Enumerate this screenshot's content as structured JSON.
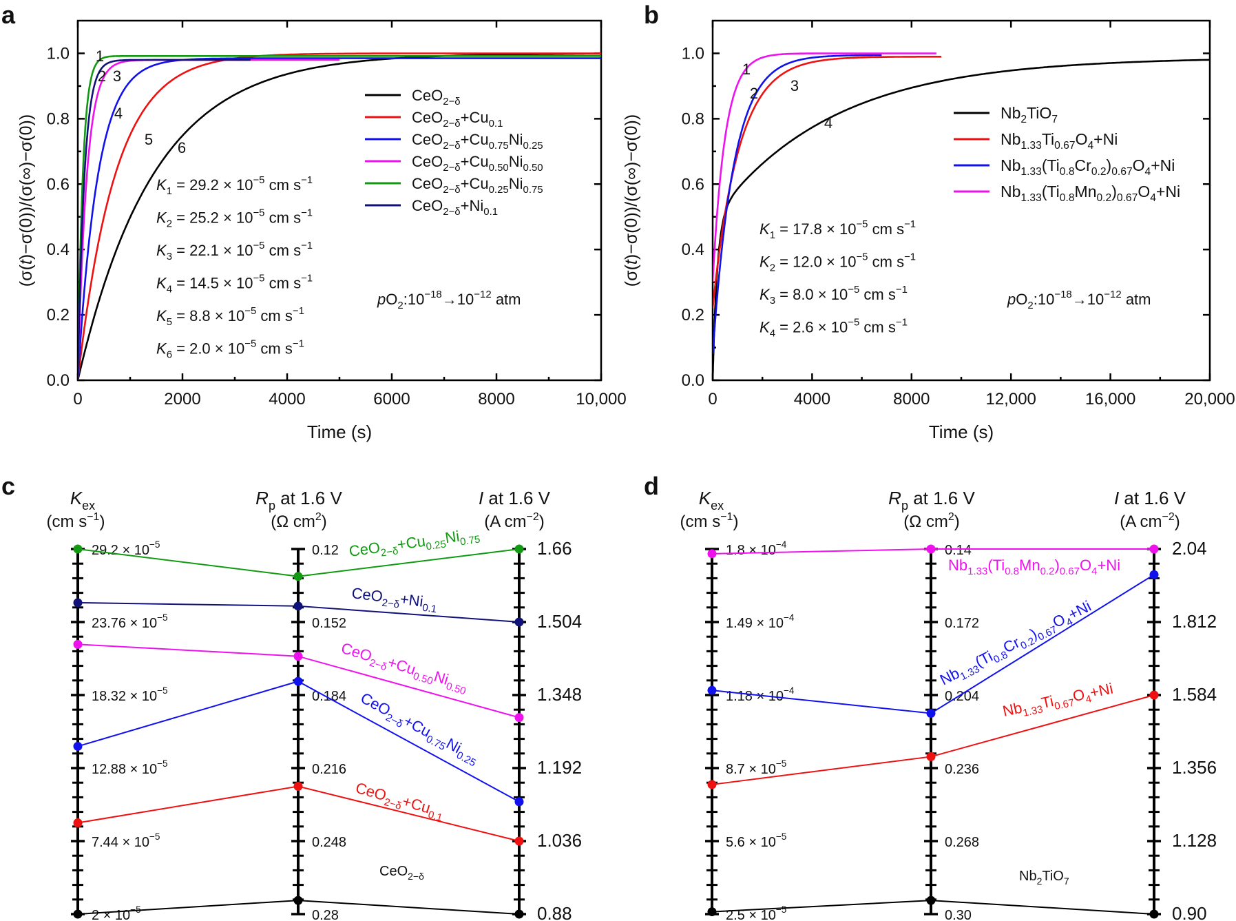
{
  "chart_data": [
    {
      "type": "line",
      "panel": "a",
      "xlabel": "Time (s)",
      "ylabel": "(σ(t)−σ(0))/(σ(∞)−σ(0))",
      "xlim": [
        0,
        10000
      ],
      "ylim": [
        0,
        1.1
      ],
      "xticks": [
        0,
        2000,
        4000,
        6000,
        8000,
        10000
      ],
      "xtick_labels": [
        "0",
        "2000",
        "4000",
        "6000",
        "8000",
        "10,000"
      ],
      "yticks": [
        0.0,
        0.2,
        0.4,
        0.6,
        0.8,
        1.0
      ],
      "ytick_labels": [
        "0.0",
        "0.2",
        "0.4",
        "0.6",
        "0.8",
        "1.0"
      ],
      "annotation": "pO2:10−18→10−12 atm",
      "series": [
        {
          "name": "CeO2−δ",
          "color": "#000000",
          "label": "6",
          "tau": 1450,
          "end": 10000,
          "plateau": 1.0
        },
        {
          "name": "CeO2−δ+Cu0.1",
          "color": "#ee1111",
          "label": "5",
          "tau": 720,
          "end": 10000,
          "plateau": 1.0
        },
        {
          "name": "CeO2−δ+Cu0.75Ni0.25",
          "color": "#1111ee",
          "label": "4",
          "tau": 380,
          "end": 10000,
          "plateau": 0.985
        },
        {
          "name": "CeO2−δ+Cu0.50Ni0.50",
          "color": "#ee11ee",
          "label": "3",
          "tau": 170,
          "end": 5000,
          "plateau": 0.98
        },
        {
          "name": "CeO2−δ+Cu0.25Ni0.75",
          "color": "#119911",
          "label": "1",
          "tau": 95,
          "end": 10000,
          "plateau": 0.992
        },
        {
          "name": "CeO2−δ+Ni0.1",
          "color": "#11117a",
          "label": "2",
          "tau": 125,
          "end": 3300,
          "plateau": 0.98
        }
      ],
      "rates": [
        {
          "k": "1",
          "text": " = 29.2 × 10−5 cm s−1"
        },
        {
          "k": "2",
          "text": " = 25.2 × 10−5 cm s−1"
        },
        {
          "k": "3",
          "text": " = 22.1 × 10−5 cm s−1"
        },
        {
          "k": "4",
          "text": " = 14.5 × 10−5 cm s−1"
        },
        {
          "k": "5",
          "text": " = 8.8 × 10−5 cm s−1"
        },
        {
          "k": "6",
          "text": " = 2.0 × 10−5 cm s−1"
        }
      ]
    },
    {
      "type": "line",
      "panel": "b",
      "xlabel": "Time (s)",
      "ylabel": "(σ(t)−σ(0))/(σ(∞)−σ(0))",
      "xlim": [
        0,
        20000
      ],
      "ylim": [
        0,
        1.1
      ],
      "xticks": [
        0,
        4000,
        8000,
        12000,
        16000,
        20000
      ],
      "xtick_labels": [
        "0",
        "4000",
        "8000",
        "12,000",
        "16,000",
        "20,000"
      ],
      "yticks": [
        0.0,
        0.2,
        0.4,
        0.6,
        0.8,
        1.0
      ],
      "ytick_labels": [
        "0.0",
        "0.2",
        "0.4",
        "0.6",
        "0.8",
        "1.0"
      ],
      "annotation": "pO2:10−18→10−12 atm",
      "series": [
        {
          "name": "Nb2TiO7",
          "color": "#000000",
          "label": "4",
          "y0": 0.0,
          "tau": 4800,
          "end": 20000,
          "plateau": 0.988
        },
        {
          "name": "Nb1.33Ti0.67O4+Ni",
          "color": "#ee1111",
          "label": "3",
          "y0": 0.22,
          "tau": 1050,
          "end": 9200,
          "plateau": 0.99
        },
        {
          "name": "Nb1.33(Ti0.8Cr0.2)0.67O4+Ni",
          "color": "#1111ee",
          "label": "2",
          "y0": 0.08,
          "tau": 850,
          "end": 6800,
          "plateau": 0.995
        },
        {
          "name": "Nb1.33(Ti0.8Mn0.2)0.67O4+Ni",
          "color": "#ee11ee",
          "label": "1",
          "y0": 0.3,
          "tau": 500,
          "end": 9000,
          "plateau": 1.0
        }
      ],
      "rates": [
        {
          "k": "1",
          "text": " = 17.8 × 10−5 cm s−1"
        },
        {
          "k": "2",
          "text": " = 12.0 × 10−5 cm s−1"
        },
        {
          "k": "3",
          "text": " = 8.0 × 10−5 cm s−1"
        },
        {
          "k": "4",
          "text": " = 2.6 × 10−5 cm s−1"
        }
      ]
    },
    {
      "type": "parallel-axes",
      "panel": "c",
      "axes": [
        {
          "title": "Kex",
          "unit": "(cm s−1)",
          "range": [
            2e-05,
            0.000292
          ],
          "inverted": false,
          "tick_labels": [
            "29.2 × 10−5",
            "23.76 × 10−5",
            "18.32 × 10−5",
            "12.88 × 10−5",
            "7.44 × 10−5",
            "2 × 10−5"
          ]
        },
        {
          "title": "Rp at 1.6 V",
          "unit": "(Ω cm2)",
          "range": [
            0.12,
            0.28
          ],
          "inverted": true,
          "tick_labels": [
            "0.12",
            "0.152",
            "0.184",
            "0.216",
            "0.248",
            "0.28"
          ]
        },
        {
          "title": "I at 1.6 V",
          "unit": "(A cm−2)",
          "range": [
            0.88,
            1.66
          ],
          "inverted": false,
          "tick_labels": [
            "1.66",
            "1.504",
            "1.348",
            "1.192",
            "1.036",
            "0.88"
          ]
        }
      ],
      "series": [
        {
          "name": "CeO2−δ+Cu0.25Ni0.75",
          "color": "#119911",
          "values": [
            0.000292,
            0.132,
            1.66
          ]
        },
        {
          "name": "CeO2−δ+Ni0.1",
          "color": "#11117a",
          "values": [
            0.000252,
            0.145,
            1.504
          ]
        },
        {
          "name": "CeO2−δ+Cu0.50Ni0.50",
          "color": "#ee11ee",
          "values": [
            0.000221,
            0.167,
            1.3
          ]
        },
        {
          "name": "CeO2−δ+Cu0.75Ni0.25",
          "color": "#1111ee",
          "values": [
            0.000145,
            0.178,
            1.12
          ]
        },
        {
          "name": "CeO2−δ+Cu0.1",
          "color": "#ee1111",
          "values": [
            8.8e-05,
            0.224,
            1.036
          ]
        },
        {
          "name": "CeO2−δ",
          "color": "#000000",
          "values": [
            2e-05,
            0.274,
            0.88
          ]
        }
      ]
    },
    {
      "type": "parallel-axes",
      "panel": "d",
      "axes": [
        {
          "title": "Kex",
          "unit": "(cm s−1)",
          "range": [
            2.5e-05,
            0.00018
          ],
          "inverted": false,
          "tick_labels": [
            "1.8 × 10−4",
            "1.49 × 10−4",
            "1.18 × 10−4",
            "8.7 × 10−5",
            "5.6 × 10−5",
            "2.5 × 10−5"
          ]
        },
        {
          "title": "Rp at 1.6 V",
          "unit": "(Ω cm2)",
          "range": [
            0.14,
            0.3
          ],
          "inverted": true,
          "tick_labels": [
            "0.14",
            "0.172",
            "0.204",
            "0.236",
            "0.268",
            "0.30"
          ]
        },
        {
          "title": "I at 1.6 V",
          "unit": "(A cm−2)",
          "range": [
            0.9,
            2.04
          ],
          "inverted": false,
          "tick_labels": [
            "2.04",
            "1.812",
            "1.584",
            "1.356",
            "1.128",
            "0.90"
          ]
        }
      ],
      "series": [
        {
          "name": "Nb1.33(Ti0.8Mn0.2)0.67O4+Ni",
          "color": "#ee11ee",
          "values": [
            0.000178,
            0.14,
            2.04
          ]
        },
        {
          "name": "Nb1.33(Ti0.8Cr0.2)0.67O4+Ni",
          "color": "#1111ee",
          "values": [
            0.00012,
            0.212,
            1.96
          ]
        },
        {
          "name": "Nb1.33Ti0.67O4+Ni",
          "color": "#ee1111",
          "values": [
            8e-05,
            0.231,
            1.584
          ]
        },
        {
          "name": "Nb2TiO7",
          "color": "#000000",
          "values": [
            2.6e-05,
            0.294,
            0.9
          ]
        }
      ]
    }
  ]
}
